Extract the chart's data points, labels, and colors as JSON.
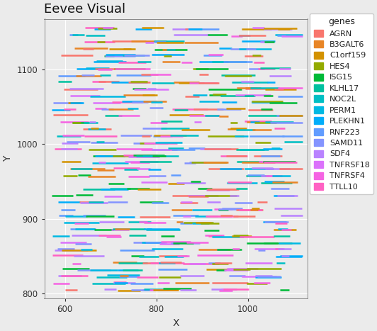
{
  "title": "Eevee Visual",
  "xlabel": "X",
  "ylabel": "Y",
  "xlim": [
    555,
    1130
  ],
  "ylim": [
    793,
    1168
  ],
  "x_ticks": [
    600,
    800,
    1000
  ],
  "y_ticks": [
    800,
    900,
    1000,
    1100
  ],
  "plot_bg": "#ebebeb",
  "fig_bg": "#ebebeb",
  "grid_color": "#ffffff",
  "genes": [
    "AGRN",
    "B3GALT6",
    "C1orf159",
    "HES4",
    "ISG15",
    "KLHL17",
    "NOC2L",
    "PERM1",
    "PLEKHN1",
    "RNF223",
    "SAMD11",
    "SDF4",
    "TNFRSF18",
    "TNFRSF4",
    "TTLL10"
  ],
  "gene_colors": {
    "AGRN": "#F8766D",
    "B3GALT6": "#E88526",
    "C1orf159": "#D39200",
    "HES4": "#93AA00",
    "ISG15": "#00BA38",
    "KLHL17": "#00C19F",
    "NOC2L": "#00BFC4",
    "PERM1": "#00B9E3",
    "PLEKHN1": "#00ADFA",
    "RNF223": "#619CFF",
    "SAMD11": "#8494FF",
    "SDF4": "#B983FF",
    "TNFRSF18": "#DB72FB",
    "TNFRSF4": "#F564E3",
    "TTLL10": "#FF61C3"
  },
  "seed": 123,
  "n_rows": 40,
  "y_range_min": 800,
  "y_range_max": 1160,
  "x_range_min": 570,
  "x_range_max": 1120,
  "linewidth": 1.8,
  "title_fontsize": 13,
  "axis_label_fontsize": 10,
  "tick_fontsize": 8.5,
  "legend_fontsize": 8,
  "legend_title_fontsize": 9
}
